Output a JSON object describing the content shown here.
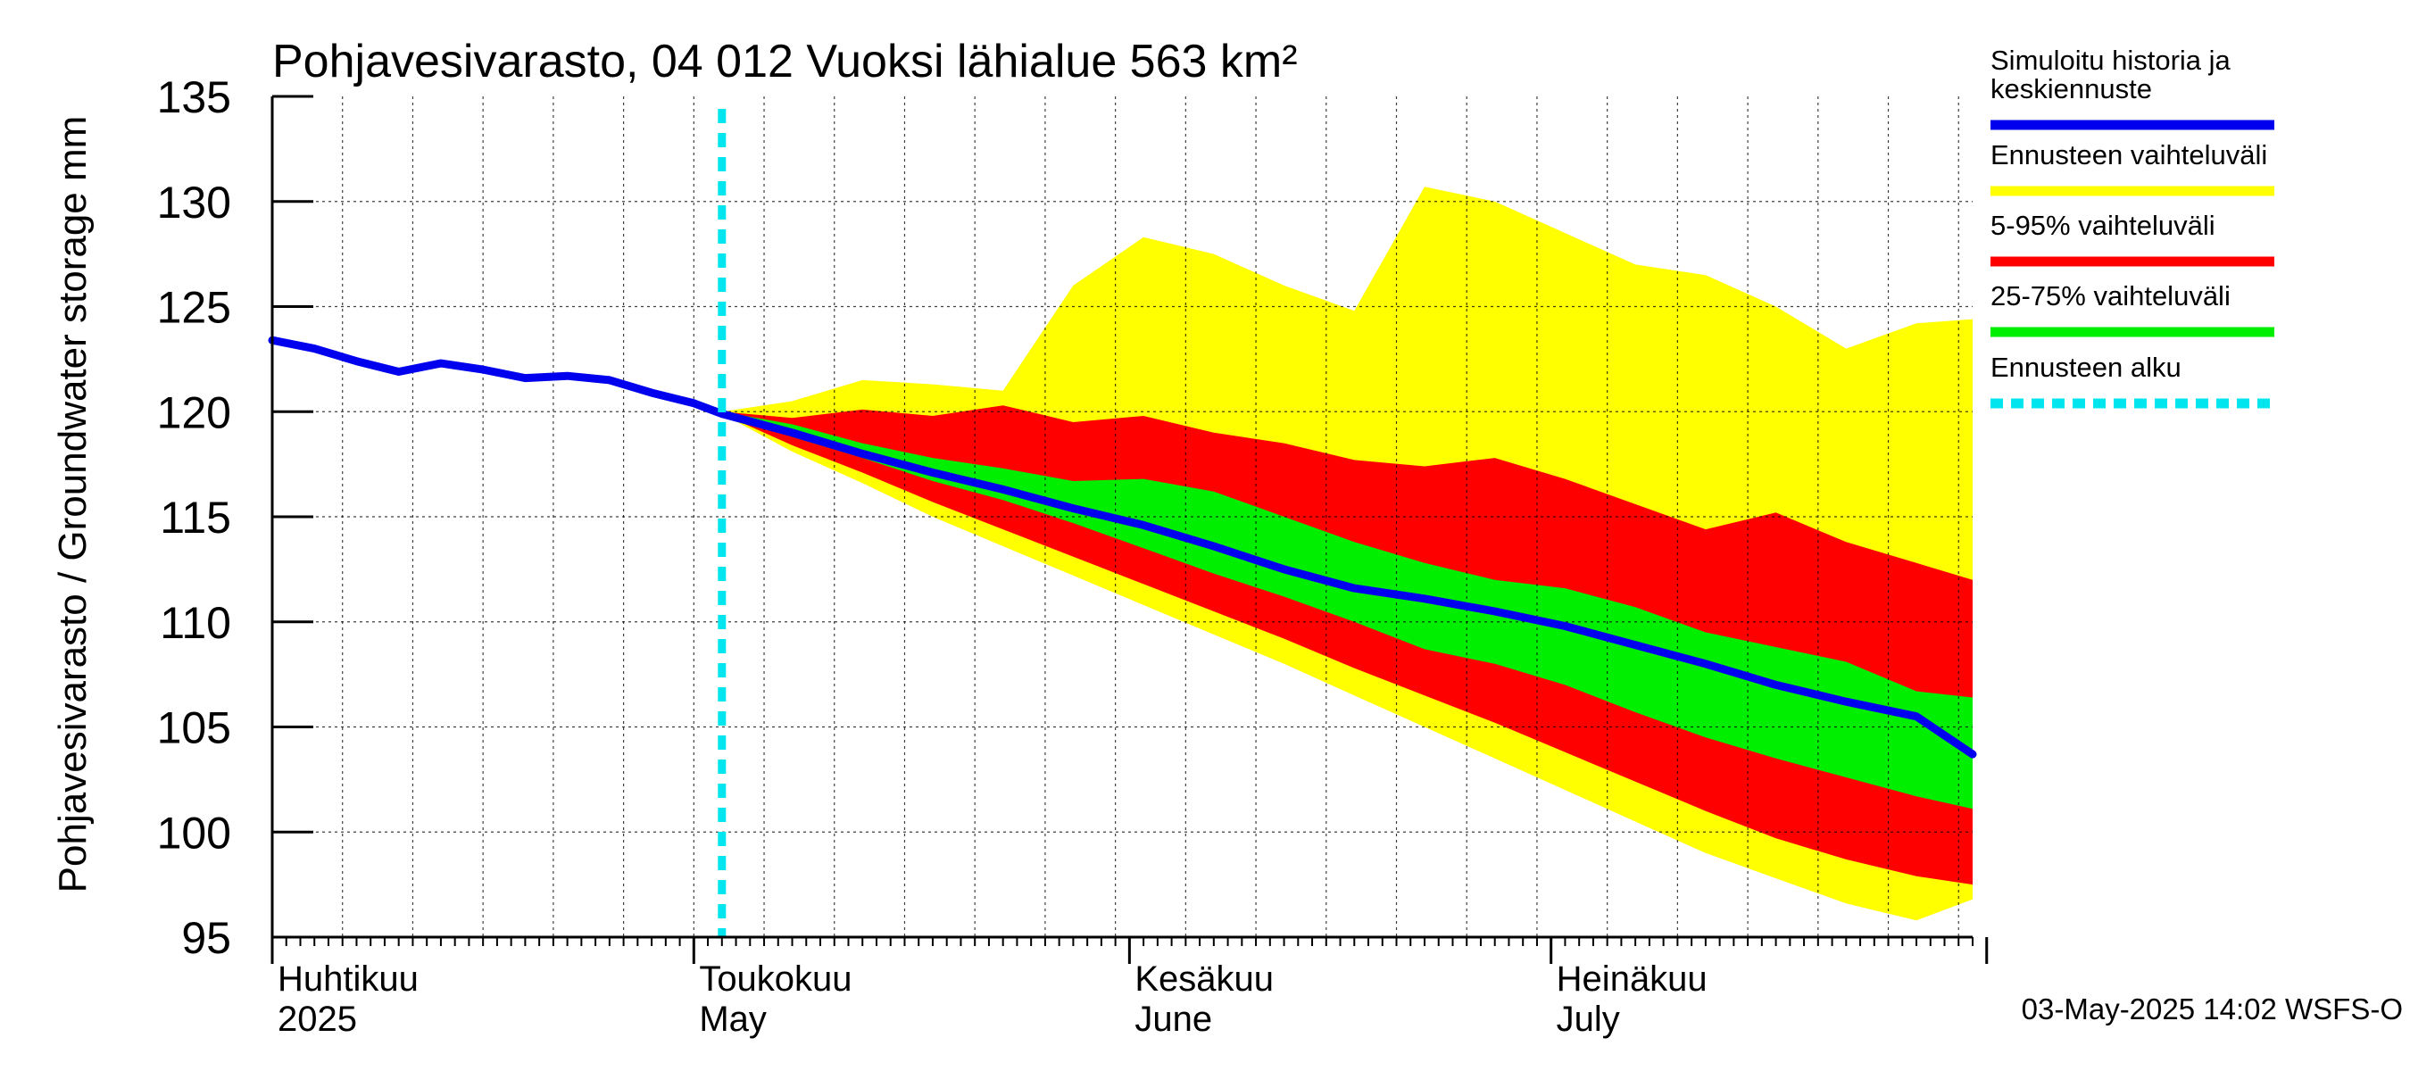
{
  "chart_data": {
    "type": "area",
    "title": "Pohjavesivarasto, 04 012 Vuoksi lähialue 563 km²",
    "ylabel": "Pohjavesivarasto / Groundwater storage   mm",
    "xlabel": "",
    "ylim": [
      95,
      135
    ],
    "xlim": [
      "2025-04-01",
      "2025-07-31"
    ],
    "yticks": [
      95,
      100,
      105,
      110,
      115,
      120,
      125,
      130,
      135
    ],
    "month_labels": [
      {
        "date": "2025-04-01",
        "fi": "Huhtikuu",
        "en": "2025"
      },
      {
        "date": "2025-05-01",
        "fi": "Toukokuu",
        "en": "May"
      },
      {
        "date": "2025-06-01",
        "fi": "Kesäkuu",
        "en": "June"
      },
      {
        "date": "2025-07-01",
        "fi": "Heinäkuu",
        "en": "July"
      }
    ],
    "grid": true,
    "forecast_start": "2025-05-03",
    "legend_position": "right",
    "footer": "03-May-2025 14:02 WSFS-O",
    "series": [
      {
        "name": "Simuloitu historia ja keskiennuste",
        "color": "#0000ee",
        "kind": "line",
        "x": [
          "2025-04-01",
          "2025-04-04",
          "2025-04-07",
          "2025-04-10",
          "2025-04-13",
          "2025-04-16",
          "2025-04-19",
          "2025-04-22",
          "2025-04-25",
          "2025-04-28",
          "2025-05-01",
          "2025-05-03",
          "2025-05-08",
          "2025-05-13",
          "2025-05-18",
          "2025-05-23",
          "2025-05-28",
          "2025-06-02",
          "2025-06-07",
          "2025-06-12",
          "2025-06-17",
          "2025-06-22",
          "2025-06-27",
          "2025-07-02",
          "2025-07-07",
          "2025-07-12",
          "2025-07-17",
          "2025-07-22",
          "2025-07-27",
          "2025-07-31"
        ],
        "y": [
          123.4,
          123.0,
          122.4,
          121.9,
          122.3,
          122.0,
          121.6,
          121.7,
          121.5,
          120.9,
          120.4,
          119.9,
          119.0,
          118.0,
          117.1,
          116.3,
          115.4,
          114.6,
          113.6,
          112.5,
          111.6,
          111.1,
          110.5,
          109.8,
          108.9,
          108.0,
          107.0,
          106.2,
          105.5,
          103.7
        ]
      },
      {
        "name": "Ennusteen vaihteluväli",
        "color": "#ffff00",
        "kind": "band",
        "x": [
          "2025-05-03",
          "2025-05-08",
          "2025-05-13",
          "2025-05-18",
          "2025-05-23",
          "2025-05-28",
          "2025-06-02",
          "2025-06-07",
          "2025-06-12",
          "2025-06-17",
          "2025-06-22",
          "2025-06-27",
          "2025-07-02",
          "2025-07-07",
          "2025-07-12",
          "2025-07-17",
          "2025-07-22",
          "2025-07-27",
          "2025-07-31"
        ],
        "upper": [
          120.0,
          120.5,
          121.5,
          121.3,
          121.0,
          126.0,
          128.3,
          127.5,
          126.0,
          124.8,
          130.7,
          130.0,
          128.5,
          127.0,
          126.5,
          125.0,
          123.0,
          124.2,
          124.4
        ],
        "lower": [
          119.9,
          118.1,
          116.6,
          115.0,
          113.6,
          112.2,
          110.8,
          109.4,
          108.0,
          106.5,
          105.0,
          103.5,
          102.0,
          100.5,
          99.0,
          97.8,
          96.6,
          95.8,
          96.8
        ]
      },
      {
        "name": "5-95% vaihteluväli",
        "color": "#ff0000",
        "kind": "band",
        "x": [
          "2025-05-03",
          "2025-05-08",
          "2025-05-13",
          "2025-05-18",
          "2025-05-23",
          "2025-05-28",
          "2025-06-02",
          "2025-06-07",
          "2025-06-12",
          "2025-06-17",
          "2025-06-22",
          "2025-06-27",
          "2025-07-02",
          "2025-07-07",
          "2025-07-12",
          "2025-07-17",
          "2025-07-22",
          "2025-07-27",
          "2025-07-31"
        ],
        "upper": [
          120.0,
          119.7,
          120.1,
          119.8,
          120.3,
          119.5,
          119.8,
          119.0,
          118.5,
          117.7,
          117.4,
          117.8,
          116.8,
          115.6,
          114.4,
          115.2,
          113.8,
          112.8,
          112.0
        ],
        "lower": [
          119.9,
          118.4,
          117.1,
          115.7,
          114.4,
          113.1,
          111.8,
          110.5,
          109.2,
          107.8,
          106.5,
          105.2,
          103.8,
          102.4,
          101.0,
          99.7,
          98.7,
          97.9,
          97.5
        ]
      },
      {
        "name": "25-75% vaihteluväli",
        "color": "#00ee00",
        "kind": "band",
        "x": [
          "2025-05-03",
          "2025-05-08",
          "2025-05-13",
          "2025-05-18",
          "2025-05-23",
          "2025-05-28",
          "2025-06-02",
          "2025-06-07",
          "2025-06-12",
          "2025-06-17",
          "2025-06-22",
          "2025-06-27",
          "2025-07-02",
          "2025-07-07",
          "2025-07-12",
          "2025-07-17",
          "2025-07-22",
          "2025-07-27",
          "2025-07-31"
        ],
        "upper": [
          120.0,
          119.4,
          118.5,
          117.8,
          117.3,
          116.7,
          116.8,
          116.2,
          115.0,
          113.8,
          112.8,
          112.0,
          111.6,
          110.7,
          109.5,
          108.8,
          108.1,
          106.7,
          106.4
        ],
        "lower": [
          119.9,
          118.8,
          117.8,
          116.7,
          115.8,
          114.7,
          113.5,
          112.3,
          111.2,
          110.0,
          108.7,
          108.0,
          107.0,
          105.7,
          104.5,
          103.5,
          102.6,
          101.7,
          101.1
        ]
      },
      {
        "name": "Ennusteen alku",
        "color": "#00e5ee",
        "kind": "vline"
      }
    ]
  },
  "legend": [
    {
      "label": "Simuloitu historia ja keskiennuste",
      "color": "#0000ee",
      "style": "solid"
    },
    {
      "label": "Ennusteen vaihteluväli",
      "color": "#ffff00",
      "style": "solid"
    },
    {
      "label": "5-95% vaihteluväli",
      "color": "#ff0000",
      "style": "solid"
    },
    {
      "label": "25-75% vaihteluväli",
      "color": "#00ee00",
      "style": "solid"
    },
    {
      "label": "Ennusteen alku",
      "color": "#00e5ee",
      "style": "dashed"
    }
  ]
}
